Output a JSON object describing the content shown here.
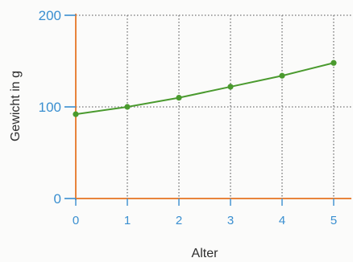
{
  "chart_data": {
    "type": "line",
    "xlabel": "Alter",
    "ylabel": "Gewicht in g",
    "xlim": [
      0,
      5
    ],
    "ylim": [
      0,
      200
    ],
    "x_ticks": [
      0,
      1,
      2,
      3,
      4,
      5
    ],
    "y_ticks": [
      0,
      100,
      200
    ],
    "grid": true,
    "series": [
      {
        "x": [
          0,
          1,
          2,
          3,
          4,
          5
        ],
        "y": [
          92,
          100,
          110,
          122,
          134,
          148
        ]
      }
    ],
    "colors": {
      "line": "#4a9a2e",
      "axis": "#e8843c",
      "grid": "#8a8a8a",
      "tick_text": "#3a8fd0",
      "title_text": "#2d2d2d"
    }
  }
}
